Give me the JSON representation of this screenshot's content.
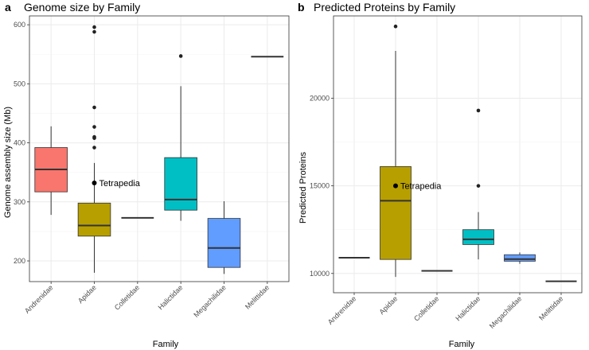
{
  "chart_data": [
    {
      "type": "box",
      "panel_letter": "a",
      "title": "Genome size by Family",
      "xlabel": "Family",
      "ylabel": "Genome assembly size (Mb)",
      "ylim": [
        165,
        615
      ],
      "yticks": [
        200,
        300,
        400,
        500,
        600
      ],
      "ytick_labels": [
        "200",
        "300",
        "400",
        "500",
        "600"
      ],
      "categories": [
        "Andrenidae",
        "Apidae",
        "Colletidae",
        "Halictidae",
        "Megachilidae",
        "Melittidae"
      ],
      "boxes": [
        {
          "category": "Andrenidae",
          "color": "#F8766D",
          "min": 278,
          "q1": 317,
          "median": 355,
          "q3": 392,
          "max": 428,
          "outliers": []
        },
        {
          "category": "Apidae",
          "color": "#B79F00",
          "min": 180,
          "q1": 242,
          "median": 260,
          "q3": 298,
          "max": 366,
          "outliers": [
            392,
            408,
            410,
            427,
            460,
            588,
            596
          ]
        },
        {
          "category": "Colletidae",
          "color": "#00BA38",
          "min": 273,
          "q1": 273,
          "median": 273,
          "q3": 273,
          "max": 273,
          "outliers": []
        },
        {
          "category": "Halictidae",
          "color": "#00BFC4",
          "min": 268,
          "q1": 286,
          "median": 304,
          "q3": 375,
          "max": 496,
          "outliers": [
            547
          ]
        },
        {
          "category": "Megachilidae",
          "color": "#619CFF",
          "min": 178,
          "q1": 189,
          "median": 222,
          "q3": 272,
          "max": 301,
          "outliers": []
        },
        {
          "category": "Melittidae",
          "color": "#F564E3",
          "min": 546,
          "q1": 546,
          "median": 546,
          "q3": 546,
          "max": 546,
          "outliers": []
        }
      ],
      "annotation": {
        "label": "Tetrapedia",
        "category": "Apidae",
        "y": 332
      }
    },
    {
      "type": "box",
      "panel_letter": "b",
      "title": "Predicted Proteins by Family",
      "xlabel": "Family",
      "ylabel": "Predicted Proteins",
      "ylim": [
        8900,
        24700
      ],
      "yticks": [
        10000,
        15000,
        20000
      ],
      "ytick_labels": [
        "10000",
        "15000",
        "20000"
      ],
      "categories": [
        "Andrenidae",
        "Apidae",
        "Colletidae",
        "Halictidae",
        "Megachilidae",
        "Melittidae"
      ],
      "boxes": [
        {
          "category": "Andrenidae",
          "color": "#F8766D",
          "min": 10900,
          "q1": 10900,
          "median": 10900,
          "q3": 10900,
          "max": 10900,
          "outliers": []
        },
        {
          "category": "Apidae",
          "color": "#B79F00",
          "min": 9800,
          "q1": 10800,
          "median": 14150,
          "q3": 16100,
          "max": 22700,
          "outliers": [
            24100
          ]
        },
        {
          "category": "Colletidae",
          "color": "#00BA38",
          "min": 10150,
          "q1": 10150,
          "median": 10150,
          "q3": 10150,
          "max": 10150,
          "outliers": []
        },
        {
          "category": "Halictidae",
          "color": "#00BFC4",
          "min": 10800,
          "q1": 11650,
          "median": 11950,
          "q3": 12500,
          "max": 13500,
          "outliers": [
            15000,
            19300
          ]
        },
        {
          "category": "Megachilidae",
          "color": "#619CFF",
          "min": 10550,
          "q1": 10700,
          "median": 10820,
          "q3": 11070,
          "max": 11200,
          "outliers": []
        },
        {
          "category": "Melittidae",
          "color": "#F564E3",
          "min": 9550,
          "q1": 9550,
          "median": 9550,
          "q3": 9550,
          "max": 9550,
          "outliers": []
        }
      ],
      "annotation": {
        "label": "Tetrapedia",
        "category": "Apidae",
        "y": 15000
      }
    }
  ]
}
